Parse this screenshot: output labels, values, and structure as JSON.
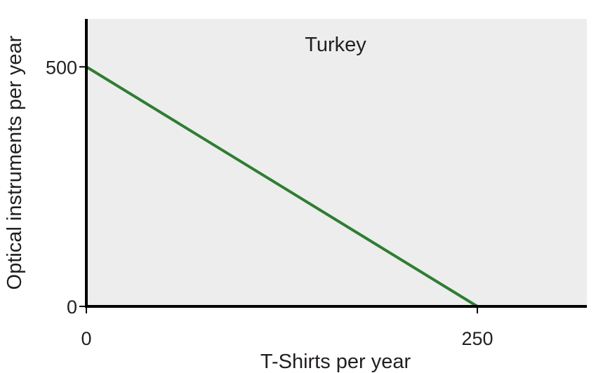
{
  "chart_data": {
    "type": "line",
    "title": "Turkey",
    "xlabel": "T-Shirts per year",
    "ylabel": "Optical instruments per year",
    "xlim": [
      0,
      320
    ],
    "ylim": [
      0,
      600
    ],
    "x_ticks": [
      {
        "value": 0,
        "label": "0"
      },
      {
        "value": 250,
        "label": "250"
      }
    ],
    "y_ticks": [
      {
        "value": 0,
        "label": "0"
      },
      {
        "value": 500,
        "label": "500"
      }
    ],
    "grid": false,
    "series": [
      {
        "color": "#2e7d32",
        "x": [
          0,
          250
        ],
        "y": [
          500,
          0
        ]
      }
    ]
  }
}
